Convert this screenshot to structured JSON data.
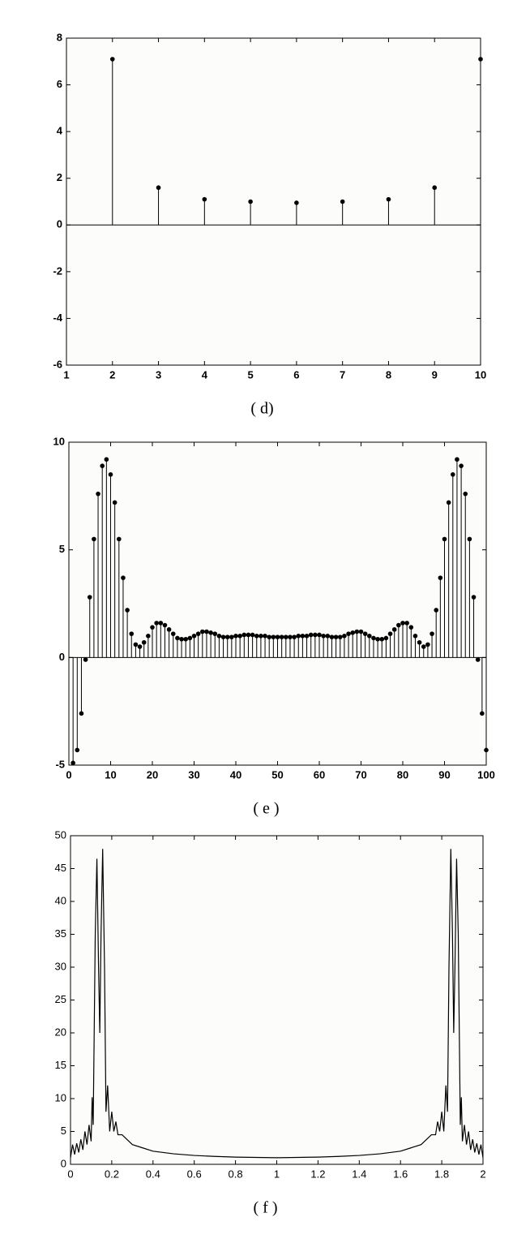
{
  "chart_data": [
    {
      "type": "stem",
      "caption": "( d)",
      "color": "#000000",
      "x": [
        2,
        3,
        4,
        5,
        6,
        7,
        8,
        9,
        10
      ],
      "values": [
        7.1,
        1.6,
        1.1,
        1.0,
        0.95,
        1.0,
        1.1,
        1.6,
        7.1
      ],
      "xlim": [
        1,
        10
      ],
      "xticks": [
        1,
        2,
        3,
        4,
        5,
        6,
        7,
        8,
        9,
        10
      ],
      "ylim": [
        -6,
        8
      ],
      "yticks": [
        -6,
        -4,
        -2,
        0,
        2,
        4,
        6,
        8
      ],
      "grid": false
    },
    {
      "type": "stem",
      "caption": "( e )",
      "color": "#000000",
      "x": [
        1,
        2,
        3,
        4,
        5,
        6,
        7,
        8,
        9,
        10,
        11,
        12,
        13,
        14,
        15,
        16,
        17,
        18,
        19,
        20,
        21,
        22,
        23,
        24,
        25,
        26,
        27,
        28,
        29,
        30,
        31,
        32,
        33,
        34,
        35,
        36,
        37,
        38,
        39,
        40,
        41,
        42,
        43,
        44,
        45,
        46,
        47,
        48,
        49,
        50,
        51,
        52,
        53,
        54,
        55,
        56,
        57,
        58,
        59,
        60,
        61,
        62,
        63,
        64,
        65,
        66,
        67,
        68,
        69,
        70,
        71,
        72,
        73,
        74,
        75,
        76,
        77,
        78,
        79,
        80,
        81,
        82,
        83,
        84,
        85,
        86,
        87,
        88,
        89,
        90,
        91,
        92,
        93,
        94,
        95,
        96,
        97,
        98,
        99,
        100
      ],
      "values": [
        -4.9,
        -4.3,
        -2.6,
        -0.1,
        2.8,
        5.5,
        7.6,
        8.9,
        9.2,
        8.5,
        7.2,
        5.5,
        3.7,
        2.2,
        1.1,
        0.6,
        0.5,
        0.7,
        1.0,
        1.4,
        1.6,
        1.6,
        1.5,
        1.3,
        1.1,
        0.9,
        0.85,
        0.85,
        0.9,
        1.0,
        1.1,
        1.2,
        1.2,
        1.15,
        1.1,
        1.0,
        0.95,
        0.95,
        0.95,
        1.0,
        1.0,
        1.05,
        1.05,
        1.05,
        1.0,
        1.0,
        1.0,
        0.95,
        0.95,
        0.95,
        0.95,
        0.95,
        0.95,
        0.95,
        1.0,
        1.0,
        1.0,
        1.05,
        1.05,
        1.05,
        1.0,
        1.0,
        0.95,
        0.95,
        0.95,
        1.0,
        1.1,
        1.15,
        1.2,
        1.2,
        1.1,
        1.0,
        0.9,
        0.85,
        0.85,
        0.9,
        1.1,
        1.3,
        1.5,
        1.6,
        1.6,
        1.4,
        1.0,
        0.7,
        0.5,
        0.6,
        1.1,
        2.2,
        3.7,
        5.5,
        7.2,
        8.5,
        9.2,
        8.9,
        7.6,
        5.5,
        2.8,
        -0.1,
        -2.6,
        -4.3
      ],
      "xlim": [
        0,
        100
      ],
      "xticks": [
        0,
        10,
        20,
        30,
        40,
        50,
        60,
        70,
        80,
        90,
        100
      ],
      "ylim": [
        -5,
        10
      ],
      "yticks": [
        -5,
        0,
        5,
        10
      ],
      "grid": false
    },
    {
      "type": "line",
      "caption": "( f )",
      "color": "#000000",
      "x": [
        0,
        0.01,
        0.02,
        0.03,
        0.04,
        0.05,
        0.06,
        0.07,
        0.08,
        0.09,
        0.1,
        0.105,
        0.11,
        0.12,
        0.128,
        0.136,
        0.142,
        0.148,
        0.156,
        0.165,
        0.172,
        0.18,
        0.19,
        0.2,
        0.21,
        0.22,
        0.23,
        0.25,
        0.3,
        0.35,
        0.4,
        0.5,
        0.6,
        0.7,
        0.8,
        0.9,
        1.0,
        1.1,
        1.2,
        1.3,
        1.4,
        1.5,
        1.6,
        1.65,
        1.7,
        1.75,
        1.77,
        1.78,
        1.79,
        1.8,
        1.81,
        1.82,
        1.828,
        1.835,
        1.844,
        1.852,
        1.858,
        1.864,
        1.872,
        1.88,
        1.89,
        1.895,
        1.9,
        1.91,
        1.92,
        1.93,
        1.94,
        1.95,
        1.96,
        1.97,
        1.98,
        1.99,
        2.0
      ],
      "values": [
        1.0,
        3.0,
        1.5,
        3.2,
        1.8,
        3.8,
        2.2,
        5.0,
        3.0,
        6.0,
        3.5,
        10.2,
        6,
        35,
        46.5,
        30,
        20,
        35,
        48,
        30,
        8,
        12,
        5,
        8,
        5,
        6.5,
        4.5,
        4.5,
        3.0,
        2.5,
        2.0,
        1.6,
        1.35,
        1.2,
        1.1,
        1.05,
        1.0,
        1.05,
        1.1,
        1.2,
        1.35,
        1.6,
        2.0,
        2.5,
        3.0,
        4.5,
        4.5,
        6.5,
        5,
        8,
        5,
        12,
        8,
        30,
        48,
        35,
        20,
        30,
        46.5,
        35,
        6,
        10.2,
        3.5,
        6,
        3,
        5,
        2.2,
        3.8,
        1.8,
        3.2,
        1.5,
        3.0,
        1.0
      ],
      "xlim": [
        0,
        2
      ],
      "xticks": [
        0,
        0.2,
        0.4,
        0.6,
        0.8,
        1,
        1.2,
        1.4,
        1.6,
        1.8,
        2
      ],
      "ylim": [
        0,
        50
      ],
      "yticks": [
        0,
        5,
        10,
        15,
        20,
        25,
        30,
        35,
        40,
        45,
        50
      ],
      "grid": false
    }
  ]
}
